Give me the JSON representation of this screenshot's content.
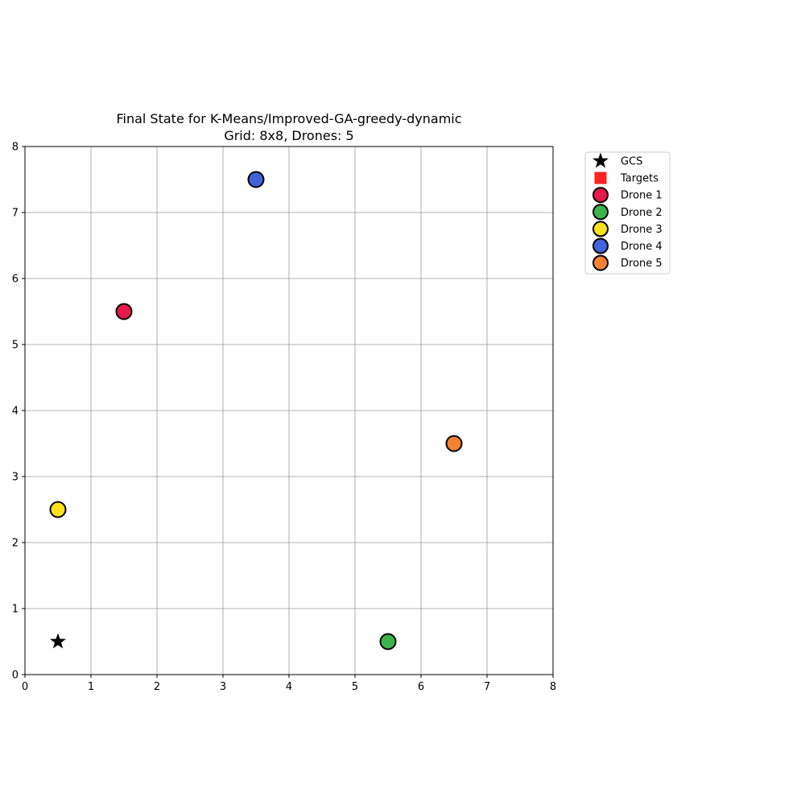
{
  "chart_data": {
    "type": "scatter",
    "title_line1": "Final State for K-Means/Improved-GA-greedy-dynamic",
    "title_line2": "Grid: 8x8, Drones: 5",
    "xlabel": "",
    "ylabel": "",
    "xlim": [
      0,
      8
    ],
    "ylim": [
      0,
      8
    ],
    "xticks": [
      0,
      1,
      2,
      3,
      4,
      5,
      6,
      7,
      8
    ],
    "yticks": [
      0,
      1,
      2,
      3,
      4,
      5,
      6,
      7,
      8
    ],
    "grid": true,
    "legend_position": "outside-upper-right",
    "gcs": {
      "name": "GCS",
      "marker": "star",
      "color": "#000000",
      "x": 0.5,
      "y": 0.5
    },
    "targets": {
      "name": "Targets",
      "marker": "square",
      "color": "#ff2222",
      "points": []
    },
    "series": [
      {
        "name": "Drone 1",
        "marker": "circle",
        "color": "#e8194b",
        "x": 1.5,
        "y": 5.5
      },
      {
        "name": "Drone 2",
        "marker": "circle",
        "color": "#3cb44b",
        "x": 5.5,
        "y": 0.5
      },
      {
        "name": "Drone 3",
        "marker": "circle",
        "color": "#ffe119",
        "x": 0.5,
        "y": 2.5
      },
      {
        "name": "Drone 4",
        "marker": "circle",
        "color": "#4363d8",
        "x": 3.5,
        "y": 7.5
      },
      {
        "name": "Drone 5",
        "marker": "circle",
        "color": "#f58231",
        "x": 6.5,
        "y": 3.5
      }
    ]
  }
}
